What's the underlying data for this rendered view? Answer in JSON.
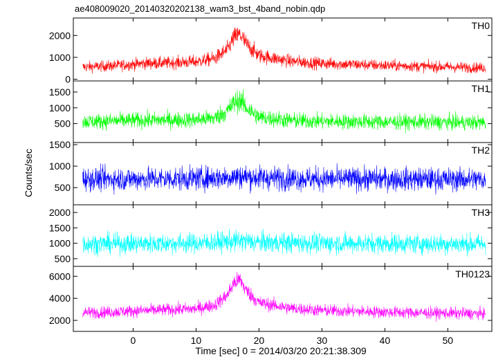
{
  "title": "ae408009020_20140320202138_wam3_bst_4band_nobin.qdp",
  "xlabel": "Time [sec] 0 = 2014/03/20 20:21:38.309",
  "ylabel": "Counts/sec",
  "chart_data": {
    "type": "line",
    "title": "ae408009020_20140320202138_wam3_bst_4band_nobin.qdp",
    "xlabel": "Time [sec] 0 = 2014/03/20 20:21:38.309",
    "ylabel": "Counts/sec",
    "xlim": [
      -9.5,
      57
    ],
    "xticks": [
      0,
      10,
      20,
      30,
      40,
      50
    ],
    "data_x_range": [
      -8,
      56
    ],
    "grid": false,
    "panels": [
      {
        "name": "TH0",
        "color": "#ff0000",
        "ylim": [
          -80,
          2800
        ],
        "yticks": [
          0,
          1000,
          2000
        ],
        "yticklabels": [
          "0",
          "1000",
          "2000"
        ],
        "x": [
          -8,
          -4,
          0,
          2,
          5,
          10,
          13,
          15,
          16,
          17,
          18,
          20,
          25,
          30,
          40,
          50,
          56
        ],
        "y": [
          560,
          600,
          680,
          730,
          740,
          800,
          950,
          1350,
          1900,
          2050,
          1600,
          1080,
          820,
          720,
          630,
          560,
          520
        ]
      },
      {
        "name": "TH1",
        "color": "#00ff00",
        "ylim": [
          -100,
          1850
        ],
        "yticks": [
          500,
          1000,
          1500
        ],
        "yticklabels": [
          "500",
          "1000",
          "1500"
        ],
        "x": [
          -8,
          -4,
          0,
          5,
          10,
          13,
          15,
          16,
          17,
          18,
          20,
          25,
          30,
          40,
          50,
          56
        ],
        "y": [
          560,
          580,
          600,
          610,
          620,
          680,
          900,
          1150,
          1250,
          1000,
          700,
          600,
          570,
          550,
          540,
          530
        ]
      },
      {
        "name": "TH2",
        "color": "#0000ff",
        "ylim": [
          100,
          1550
        ],
        "yticks": [
          500,
          1000,
          1500
        ],
        "yticklabels": [
          "500",
          "1000",
          "1500"
        ],
        "x": [
          -8,
          0,
          10,
          15,
          17,
          20,
          30,
          40,
          50,
          56
        ],
        "y": [
          700,
          700,
          710,
          740,
          760,
          730,
          700,
          700,
          690,
          690
        ]
      },
      {
        "name": "TH3",
        "color": "#00ffff",
        "ylim": [
          250,
          2250
        ],
        "yticks": [
          500,
          1000,
          1500,
          2000
        ],
        "yticklabels": [
          "500",
          "1000",
          "1500",
          "2000"
        ],
        "x": [
          -8,
          0,
          10,
          15,
          17,
          20,
          30,
          40,
          50,
          56
        ],
        "y": [
          980,
          990,
          1000,
          1050,
          1080,
          1030,
          1000,
          990,
          980,
          975
        ]
      },
      {
        "name": "TH0123",
        "color": "#ff00ff",
        "ylim": [
          1000,
          6900
        ],
        "yticks": [
          2000,
          4000,
          6000
        ],
        "yticklabels": [
          "2000",
          "4000",
          "6000"
        ],
        "x": [
          -8,
          -4,
          0,
          5,
          10,
          13,
          15,
          16,
          17,
          18,
          20,
          25,
          30,
          40,
          50,
          56
        ],
        "y": [
          2700,
          2750,
          2850,
          2950,
          3050,
          3400,
          4300,
          5400,
          5700,
          4700,
          3600,
          3100,
          2900,
          2750,
          2650,
          2600
        ]
      }
    ]
  }
}
